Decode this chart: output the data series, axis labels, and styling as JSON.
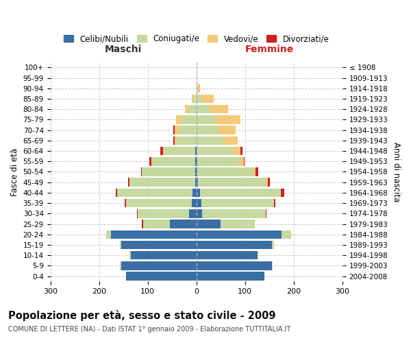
{
  "age_groups": [
    "0-4",
    "5-9",
    "10-14",
    "15-19",
    "20-24",
    "25-29",
    "30-34",
    "35-39",
    "40-44",
    "45-49",
    "50-54",
    "55-59",
    "60-64",
    "65-69",
    "70-74",
    "75-79",
    "80-84",
    "85-89",
    "90-94",
    "95-99",
    "100+"
  ],
  "birth_years": [
    "2004-2008",
    "1999-2003",
    "1994-1998",
    "1989-1993",
    "1984-1988",
    "1979-1983",
    "1974-1978",
    "1969-1973",
    "1964-1968",
    "1959-1963",
    "1954-1958",
    "1949-1953",
    "1944-1948",
    "1939-1943",
    "1934-1938",
    "1929-1933",
    "1924-1928",
    "1919-1923",
    "1914-1918",
    "1909-1913",
    "≤ 1908"
  ],
  "males": {
    "celibi": [
      145,
      155,
      135,
      155,
      175,
      55,
      15,
      10,
      8,
      3,
      2,
      2,
      2,
      0,
      0,
      0,
      0,
      0,
      0,
      0,
      0
    ],
    "coniugati": [
      0,
      2,
      2,
      2,
      10,
      55,
      105,
      135,
      155,
      135,
      110,
      90,
      65,
      40,
      35,
      30,
      15,
      5,
      0,
      0,
      0
    ],
    "vedovi": [
      0,
      0,
      0,
      0,
      0,
      0,
      0,
      0,
      0,
      0,
      0,
      0,
      2,
      5,
      10,
      12,
      8,
      5,
      0,
      0,
      0
    ],
    "divorziati": [
      0,
      0,
      0,
      0,
      0,
      2,
      2,
      2,
      3,
      3,
      2,
      5,
      5,
      2,
      2,
      0,
      0,
      0,
      0,
      0,
      0
    ]
  },
  "females": {
    "nubili": [
      140,
      155,
      125,
      155,
      175,
      50,
      12,
      10,
      8,
      3,
      2,
      2,
      0,
      0,
      0,
      0,
      0,
      0,
      0,
      0,
      0
    ],
    "coniugate": [
      0,
      2,
      2,
      5,
      20,
      70,
      130,
      150,
      165,
      140,
      115,
      85,
      75,
      55,
      45,
      40,
      25,
      10,
      2,
      0,
      0
    ],
    "vedove": [
      0,
      0,
      0,
      0,
      0,
      0,
      0,
      0,
      0,
      3,
      5,
      10,
      15,
      30,
      35,
      50,
      40,
      25,
      5,
      0,
      0
    ],
    "divorziate": [
      0,
      0,
      0,
      0,
      0,
      0,
      2,
      2,
      8,
      5,
      5,
      2,
      5,
      0,
      0,
      0,
      0,
      0,
      0,
      0,
      0
    ]
  },
  "color_celibi": "#3A6EA5",
  "color_coniugati": "#C6D9A0",
  "color_vedovi": "#F5C97A",
  "color_divorziati": "#CC2222",
  "title": "Popolazione per età, sesso e stato civile - 2009",
  "subtitle": "COMUNE DI LETTERE (NA) - Dati ISTAT 1° gennaio 2009 - Elaborazione TUTTITALIA.IT",
  "xlabel_left": "Maschi",
  "xlabel_right": "Femmine",
  "ylabel_left": "Fasce di età",
  "ylabel_right": "Anni di nascita",
  "xlim": 300,
  "legend_labels": [
    "Celibi/Nubili",
    "Coniugati/e",
    "Vedovi/e",
    "Divorziati/e"
  ],
  "bg_color": "#ffffff",
  "grid_color": "#cccccc"
}
